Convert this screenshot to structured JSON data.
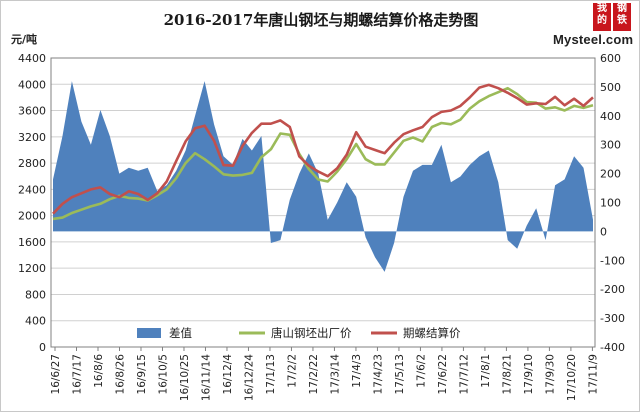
{
  "title": "2016-2017年唐山钢坯与期螺结算价格走势图",
  "unit_label": "元/吨",
  "logo": {
    "glyphs": [
      "我的",
      "钢铁"
    ],
    "wordmark": "Mysteel.com"
  },
  "colors": {
    "diff": "#4f81bd",
    "billet": "#9bbb59",
    "futures": "#c0504d",
    "grid": "#d0d0d0",
    "axis": "#808080",
    "text": "#222222"
  },
  "chart_data": {
    "type": "line",
    "yleft": {
      "min": 0,
      "max": 4400,
      "ticks": [
        "0",
        "400",
        "800",
        "1200",
        "1600",
        "2000",
        "2400",
        "2800",
        "3200",
        "3600",
        "4000",
        "4400"
      ]
    },
    "yright": {
      "min": -400,
      "max": 600,
      "ticks": [
        "-400",
        "-300",
        "-200",
        "-100",
        "0",
        "100",
        "200",
        "300",
        "400",
        "500",
        "600"
      ]
    },
    "xticks": [
      "16/6/27",
      "16/7/17",
      "16/8/6",
      "16/8/26",
      "16/9/15",
      "16/10/5",
      "16/10/25",
      "16/11/14",
      "16/12/4",
      "16/12/24",
      "17/1/13",
      "17/2/2",
      "17/2/22",
      "17/3/14",
      "17/4/3",
      "17/4/23",
      "17/5/13",
      "17/6/2",
      "17/6/22",
      "17/7/12",
      "17/8/1",
      "17/8/21",
      "17/9/10",
      "17/9/30",
      "17/10/20",
      "17/11/9"
    ],
    "legend": [
      "差值",
      "唐山钢坯出厂价",
      "期螺结算价"
    ],
    "legend_position": "bottom",
    "series": [
      {
        "name": "差值",
        "axis": "right",
        "type": "area",
        "values": [
          180,
          330,
          520,
          380,
          300,
          420,
          330,
          200,
          220,
          210,
          220,
          140,
          160,
          210,
          280,
          400,
          520,
          370,
          260,
          230,
          320,
          280,
          330,
          -40,
          -30,
          110,
          200,
          270,
          200,
          40,
          100,
          170,
          120,
          -20,
          -90,
          -140,
          -40,
          120,
          210,
          230,
          230,
          300,
          170,
          190,
          230,
          260,
          280,
          170,
          -30,
          -60,
          20,
          80,
          -30,
          160,
          180,
          260,
          220,
          40
        ]
      },
      {
        "name": "唐山钢坯出厂价",
        "axis": "left",
        "type": "line",
        "values": [
          1950,
          1970,
          2040,
          2090,
          2140,
          2180,
          2250,
          2300,
          2270,
          2260,
          2230,
          2310,
          2400,
          2570,
          2800,
          2950,
          2860,
          2750,
          2630,
          2610,
          2620,
          2650,
          2890,
          3010,
          3250,
          3230,
          2940,
          2710,
          2550,
          2520,
          2670,
          2860,
          3090,
          2860,
          2780,
          2780,
          2960,
          3140,
          3190,
          3130,
          3350,
          3410,
          3390,
          3460,
          3630,
          3740,
          3820,
          3880,
          3940,
          3850,
          3730,
          3720,
          3630,
          3650,
          3600,
          3670,
          3640,
          3680
        ]
      },
      {
        "name": "期螺结算价",
        "axis": "left",
        "type": "line",
        "values": [
          2030,
          2180,
          2280,
          2340,
          2400,
          2430,
          2330,
          2280,
          2370,
          2330,
          2240,
          2340,
          2520,
          2830,
          3130,
          3330,
          3370,
          3140,
          2770,
          2760,
          3060,
          3260,
          3400,
          3400,
          3450,
          3350,
          2900,
          2760,
          2670,
          2600,
          2720,
          2930,
          3270,
          3050,
          3000,
          2950,
          3110,
          3240,
          3300,
          3350,
          3500,
          3580,
          3600,
          3670,
          3800,
          3950,
          3990,
          3940,
          3870,
          3790,
          3690,
          3710,
          3700,
          3810,
          3680,
          3780,
          3670,
          3800
        ]
      }
    ]
  }
}
